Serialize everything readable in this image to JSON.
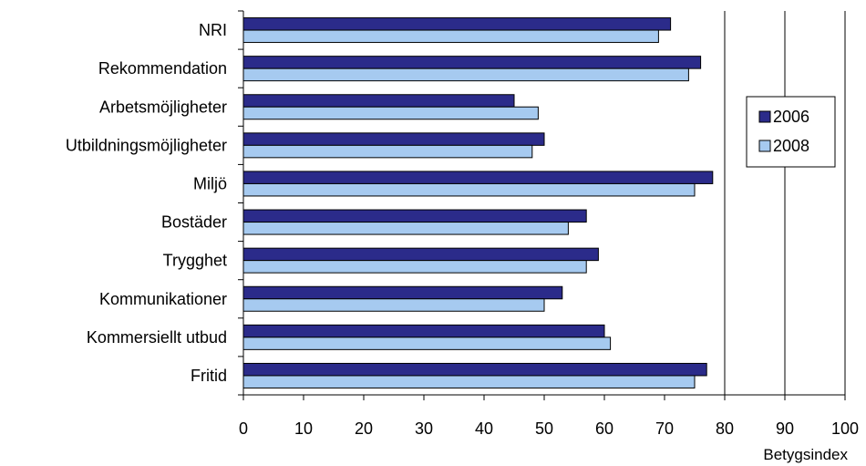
{
  "chart_data": {
    "type": "bar",
    "orientation": "horizontal",
    "categories": [
      "NRI",
      "Rekommendation",
      "Arbetsmöjligheter",
      "Utbildningsmöjligheter",
      "Miljö",
      "Bostäder",
      "Trygghet",
      "Kommunikationer",
      "Kommersiellt utbud",
      "Fritid"
    ],
    "series": [
      {
        "name": "2006",
        "color": "#2b2b8a",
        "values": [
          71,
          76,
          45,
          50,
          78,
          57,
          59,
          53,
          60,
          77
        ]
      },
      {
        "name": "2008",
        "color": "#a6caf0",
        "values": [
          69,
          74,
          49,
          48,
          75,
          54,
          57,
          50,
          61,
          75
        ]
      }
    ],
    "xlim": [
      0,
      100
    ],
    "xticks": [
      0,
      10,
      20,
      30,
      40,
      50,
      60,
      70,
      80,
      90,
      100
    ],
    "xlabel": "Betygsindex",
    "grid": "vertical major lines",
    "legend_position": "right"
  }
}
